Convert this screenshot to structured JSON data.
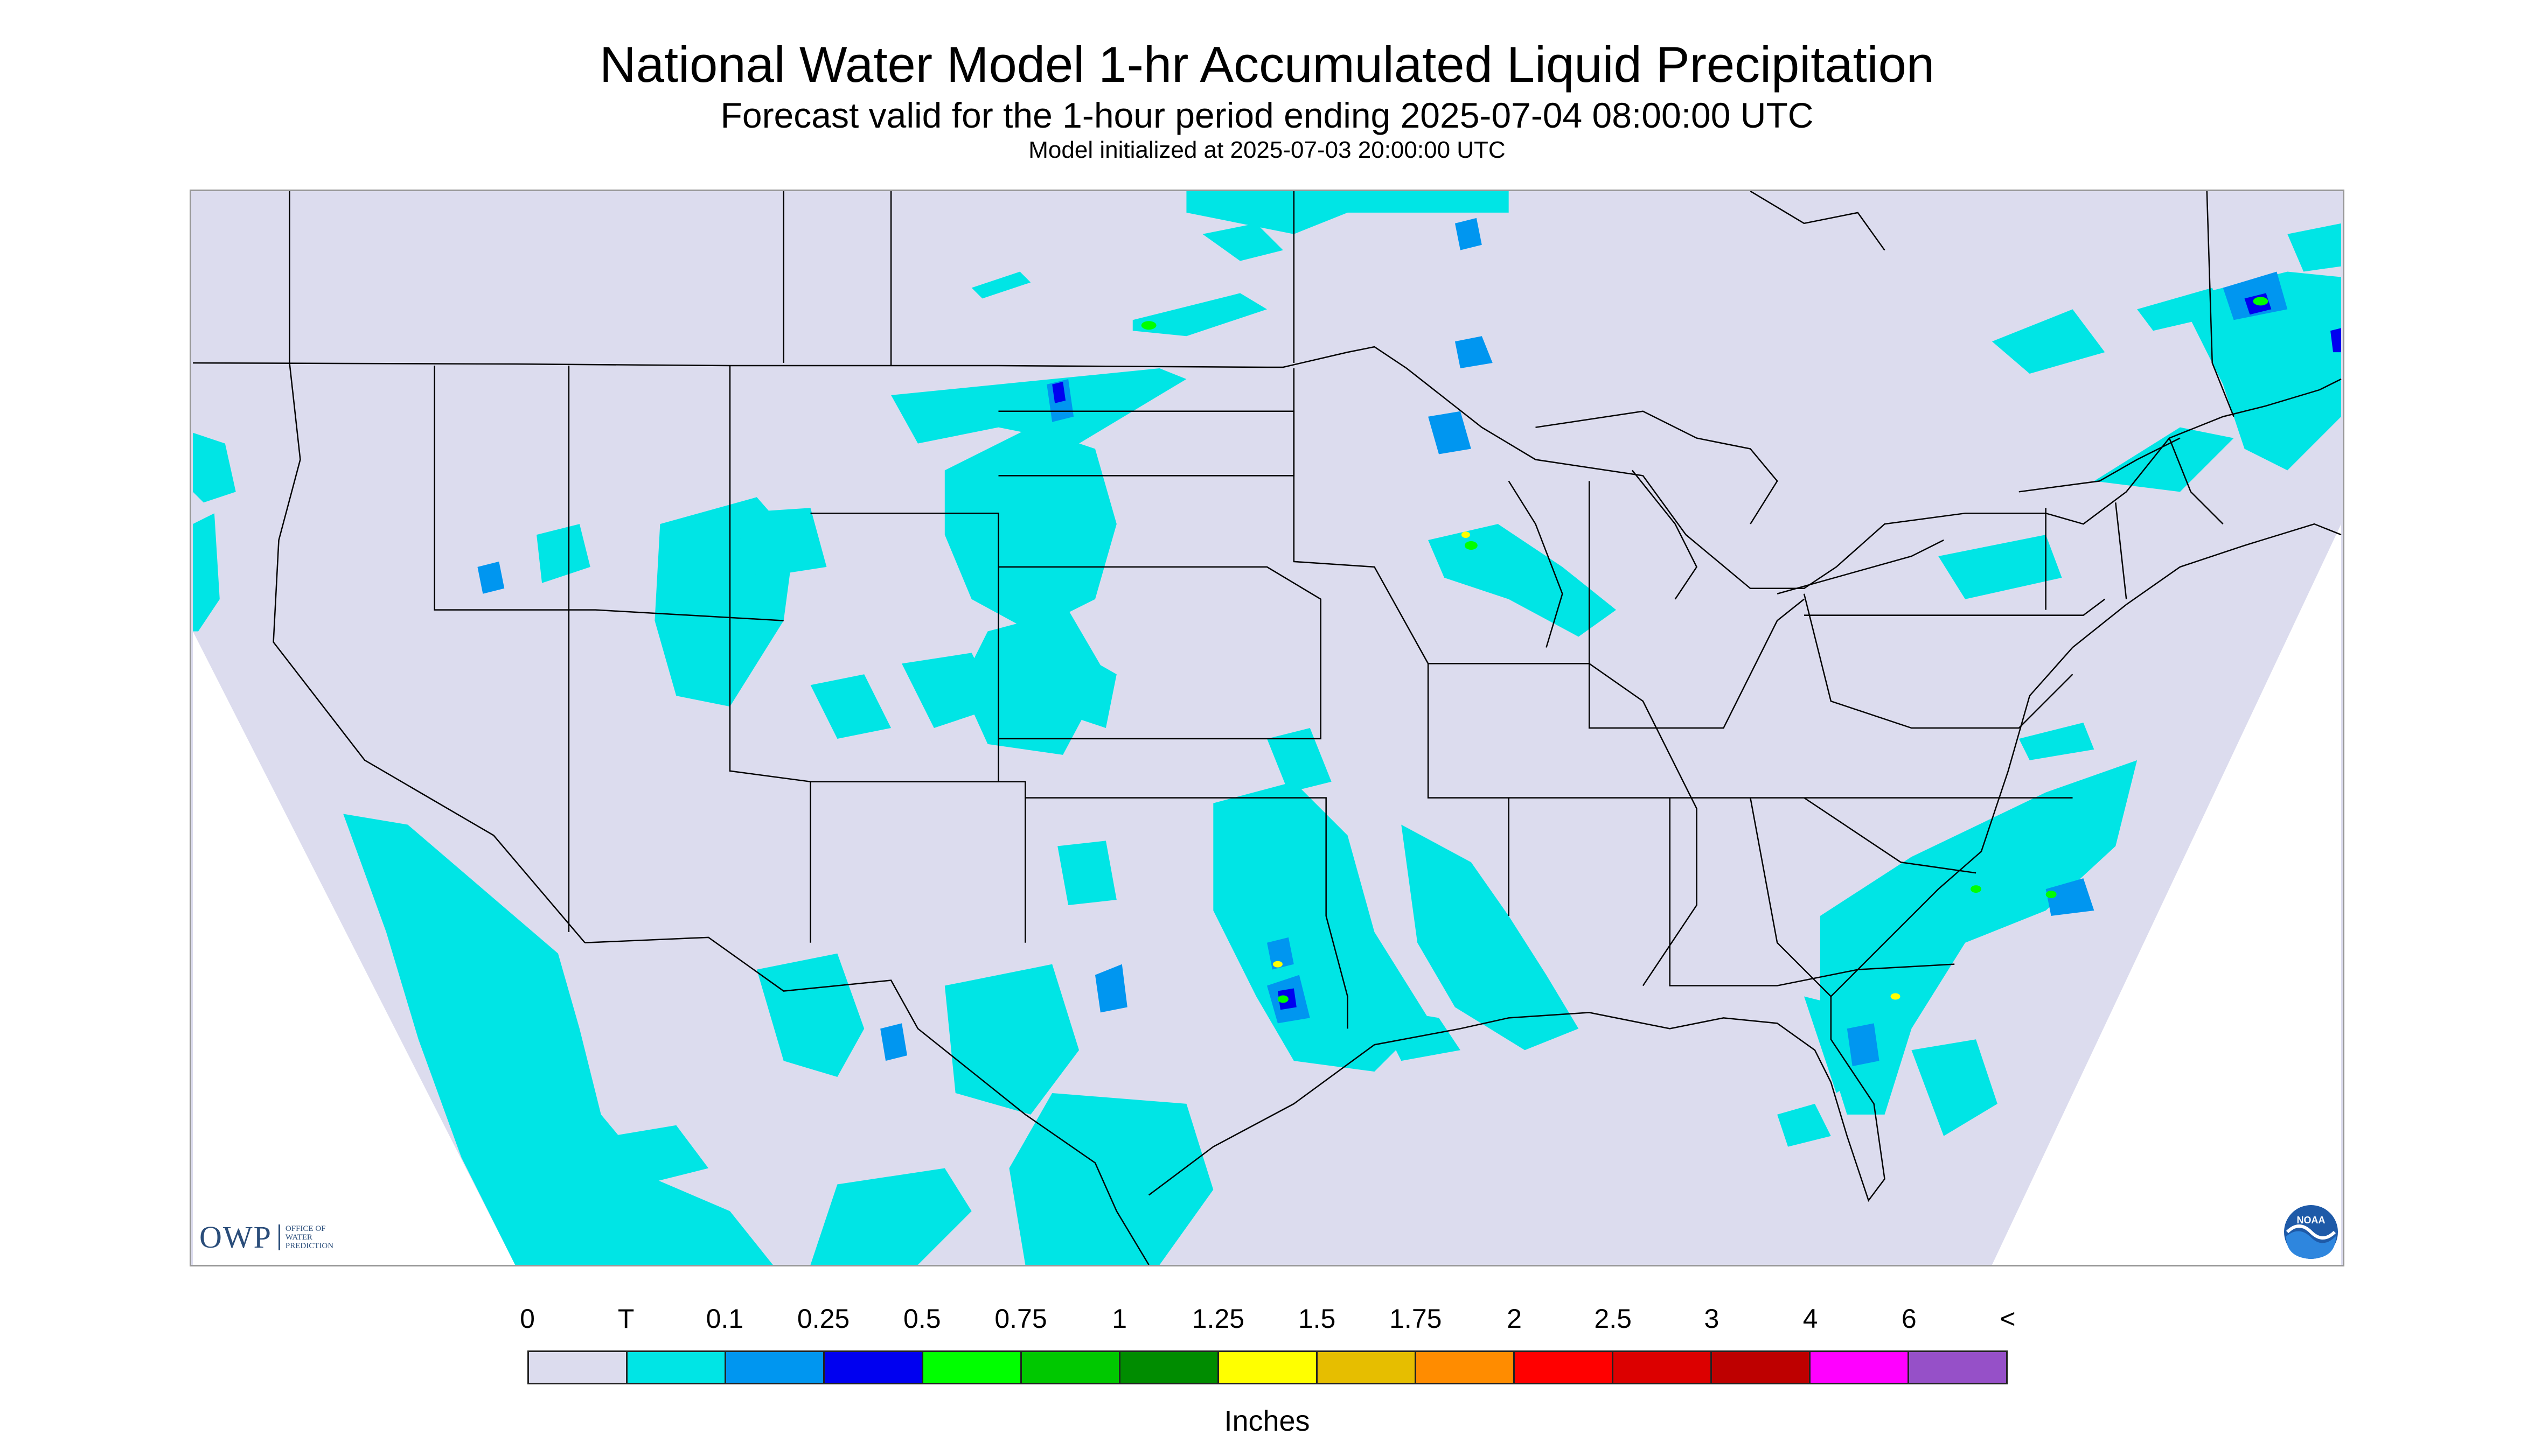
{
  "title": "National Water Model 1-hr Accumulated Liquid Precipitation",
  "subtitle": "Forecast valid for the 1-hour period ending 2025-07-04 08:00:00 UTC",
  "model_init": "Model initialized at 2025-07-03 20:00:00 UTC",
  "legend": {
    "ticks": [
      "0",
      "T",
      "0.1",
      "0.25",
      "0.5",
      "0.75",
      "1",
      "1.25",
      "1.5",
      "1.75",
      "2",
      "2.5",
      "3",
      "4",
      "6",
      "<"
    ],
    "colors": [
      "#dcdcee",
      "#00e5e5",
      "#0096f0",
      "#0000f0",
      "#00ff00",
      "#00c800",
      "#008c00",
      "#ffff00",
      "#e6be00",
      "#ff8c00",
      "#ff0000",
      "#dc0000",
      "#be0000",
      "#ff00ff",
      "#9650c8"
    ],
    "units": "Inches"
  },
  "logos": {
    "owp_text": "OWP",
    "owp_lines": [
      "OFFICE OF",
      "WATER",
      "PREDICTION"
    ],
    "noaa_text": "NOAA"
  },
  "map": {
    "background_color": "#dcdcee",
    "no_data_color": "#dcdcee",
    "boundary_color": "#000000",
    "precip_colors": [
      "#00e5e5",
      "#0096f0",
      "#0000f0",
      "#00ff00",
      "#ffff00"
    ]
  }
}
